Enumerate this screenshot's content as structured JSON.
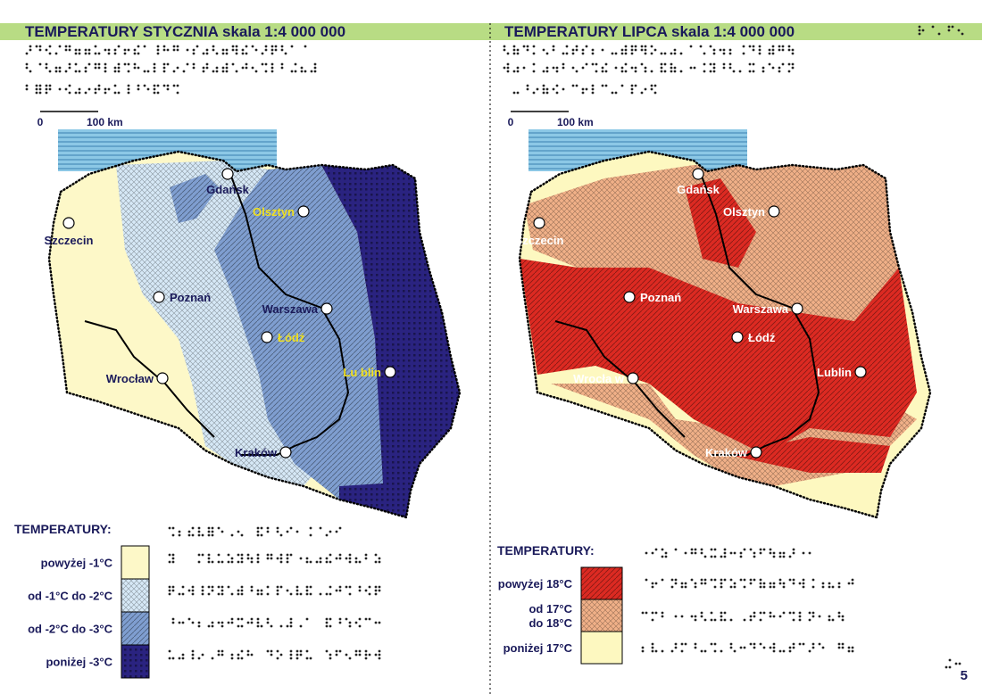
{
  "left": {
    "title": "TEMPERATURY STYCZNIA skala 1:4 000 000",
    "scale": {
      "zero": "0",
      "distance": "100 km"
    },
    "cities": [
      "Gdańsk",
      "Olsztyn",
      "Szczecin",
      "Poznań",
      "Warszawa",
      "Łódź",
      "Wrocław",
      "Lu blin",
      "Kraków"
    ],
    "legend": {
      "title": "TEMPERATURY:",
      "items": [
        {
          "label": "powyżej -1°C",
          "color": "#fdf8c8"
        },
        {
          "label": "od -1°C do -2°C",
          "color": "#d6e8f6"
        },
        {
          "label": "od -2°C do -3°C",
          "color": "#7f9ed0"
        },
        {
          "label": "poniżej -3°C",
          "color": "#2a2380"
        }
      ]
    }
  },
  "right": {
    "title": "TEMPERATURY LIPCA skala 1:4 000 000",
    "scale": {
      "zero": "0",
      "distance": "100 km"
    },
    "cities": [
      "Gdańsk",
      "Olsztyn",
      "Szczecin",
      "Poznań",
      "Warszawa",
      "Łódź",
      "Wrocła w",
      "Lublin",
      "Kraków"
    ],
    "legend": {
      "title": "TEMPERATURY:",
      "items": [
        {
          "label": "powyżej 18°C",
          "color": "#dc2a22"
        },
        {
          "label": "od 17°C\ndo 18°C",
          "color": "#f0b088"
        },
        {
          "label": "poniżej 17°C",
          "color": "#fdf8c0"
        }
      ]
    }
  },
  "page_number": "5"
}
